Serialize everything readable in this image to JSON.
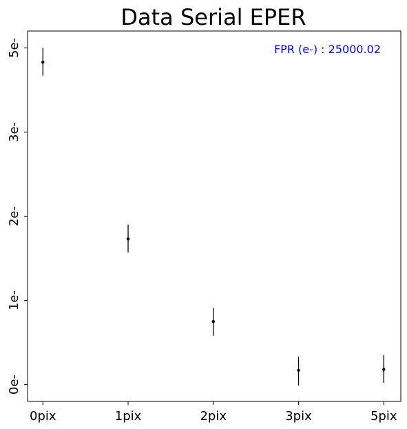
{
  "chart_data": {
    "type": "scatter",
    "title": "Data Serial EPER",
    "xlabel": "",
    "ylabel": "",
    "categories": [
      "0pix",
      "1pix",
      "2pix",
      "3pix",
      "5pix"
    ],
    "x": [
      0,
      1,
      2,
      3,
      4
    ],
    "y_ticks": [
      0,
      1,
      2,
      3,
      4
    ],
    "y_tick_labels": [
      "0e-",
      "1e-",
      "2e-",
      "3e-",
      "5e-"
    ],
    "ylim": [
      -0.2,
      4.2
    ],
    "xlim": [
      -0.18,
      4.2
    ],
    "grid": false,
    "series": [
      {
        "values": [
          3.83,
          1.73,
          0.75,
          0.17,
          0.18
        ],
        "err_low": [
          3.67,
          1.57,
          0.58,
          -0.01,
          0.02
        ],
        "err_high": [
          4.0,
          1.9,
          0.91,
          0.33,
          0.35
        ],
        "color": "#000000"
      }
    ],
    "annotation": {
      "text": "FPR (e-) : 25000.02",
      "color": "#0000ff",
      "position": "top-right"
    }
  }
}
